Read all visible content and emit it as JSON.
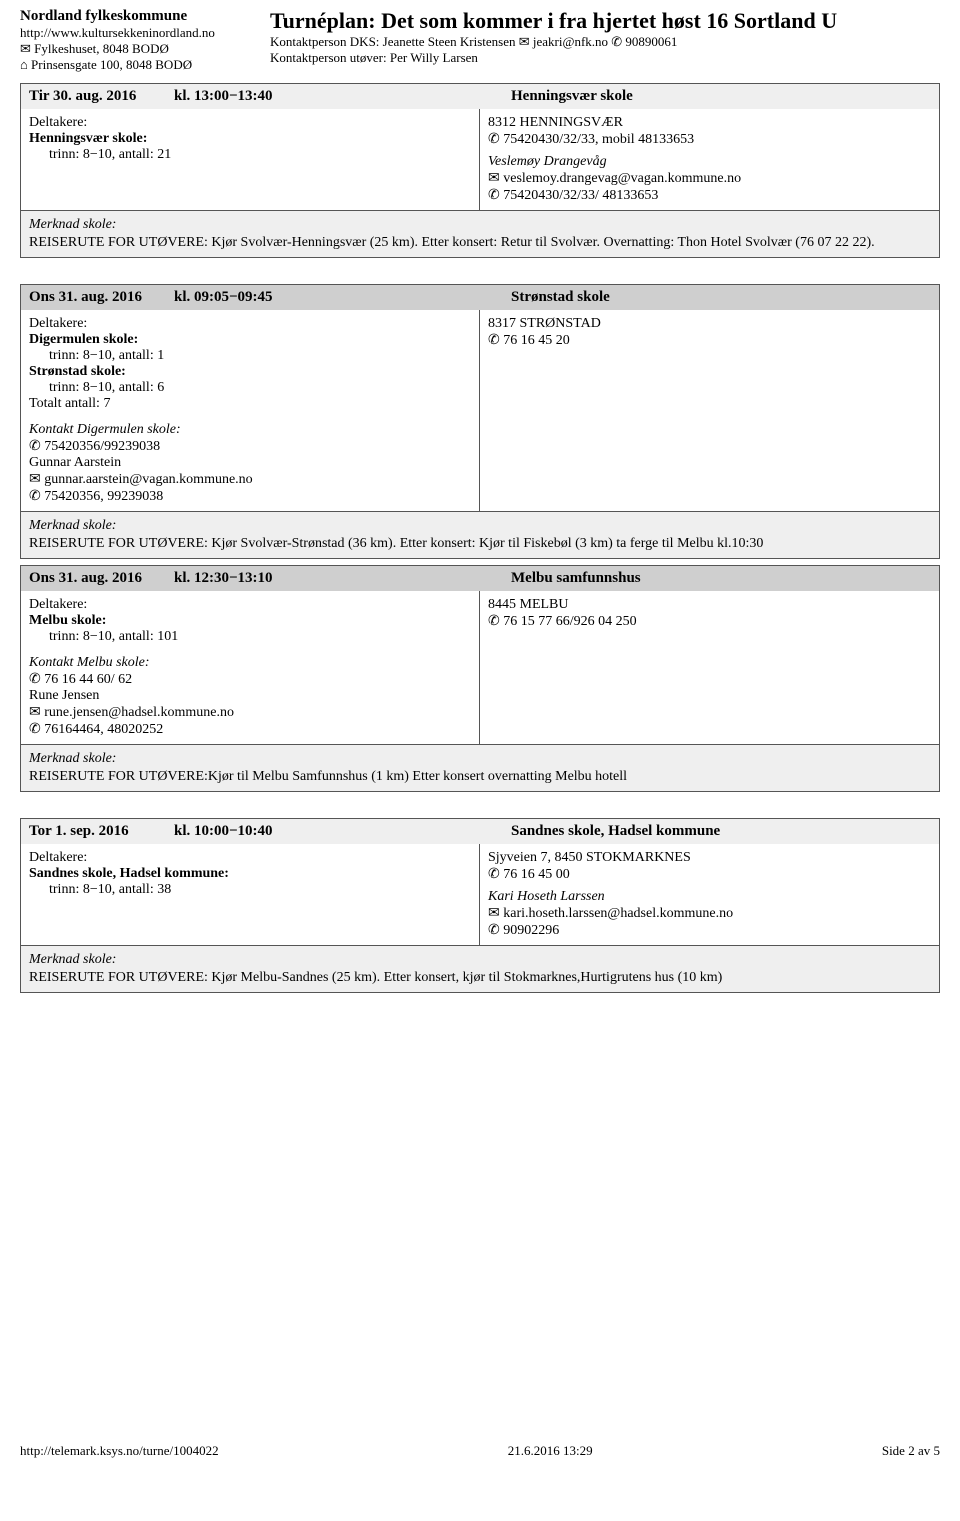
{
  "header": {
    "org_name": "Nordland fylkeskommune",
    "org_url": "http://www.kultursekkeninordland.no",
    "addr1": "✉ Fylkeshuset, 8048 BODØ",
    "addr2": "⌂ Prinsensgate 100, 8048 BODØ",
    "main_title": "Turnéplan: Det som kommer i fra hjertet høst 16 Sortland U",
    "contact1": "Kontaktperson DKS: Jeanette Steen Kristensen ✉ jeakri@nfk.no ✆ 90890061",
    "contact2": "Kontaktperson utøver: Per Willy Larsen"
  },
  "events": [
    {
      "header_style": "light",
      "date": "Tir 30. aug. 2016",
      "time_label": "kl. 13:00−13:40",
      "location": "Henningsvær skole",
      "participants_label": "Deltakere:",
      "schools": [
        {
          "name": "Henningsvær skole:",
          "detail": "trinn: 8−10, antall: 21"
        }
      ],
      "venue_addr": "8312 HENNINGSVÆR",
      "venue_phone": "✆ 75420430/32/33, mobil 48133653",
      "person_name": "Veslemøy Drangevåg",
      "person_email": "✉ veslemoy.drangevag@vagan.kommune.no",
      "person_phone": "✆ 75420430/32/33/ 48133653",
      "note_label": "Merknad skole:",
      "note_text": "REISERUTE FOR UTØVERE: Kjør Svolvær-Henningsvær (25 km). Etter konsert: Retur til Svolvær. Overnatting: Thon Hotel Svolvær (76 07 22 22)."
    },
    {
      "header_style": "dark",
      "date": "Ons 31. aug. 2016",
      "time_label": "kl. 09:05−09:45",
      "location": "Strønstad skole",
      "participants_label": "Deltakere:",
      "schools": [
        {
          "name": "Digermulen skole:",
          "detail": "trinn: 8−10, antall: 1"
        },
        {
          "name": "Strønstad skole:",
          "detail": "trinn: 8−10, antall: 6"
        }
      ],
      "total": "Totalt antall: 7",
      "contact_title": "Kontakt Digermulen skole:",
      "contact_phone": "✆ 75420356/99239038",
      "contact_name": "Gunnar Aarstein",
      "contact_email": "✉ gunnar.aarstein@vagan.kommune.no",
      "contact_phone2": "✆ 75420356, 99239038",
      "venue_addr": "8317 STRØNSTAD",
      "venue_phone": "✆ 76 16 45 20",
      "note_label": "Merknad skole:",
      "note_text": "REISERUTE FOR UTØVERE: Kjør Svolvær-Strønstad (36 km). Etter konsert: Kjør til Fiskebøl (3 km) ta ferge til Melbu kl.10:30"
    },
    {
      "header_style": "dark",
      "date": "Ons 31. aug. 2016",
      "time_label": "kl. 12:30−13:10",
      "location": "Melbu samfunnshus",
      "participants_label": "Deltakere:",
      "schools": [
        {
          "name": "Melbu skole:",
          "detail": "trinn: 8−10, antall: 101"
        }
      ],
      "contact_title": "Kontakt Melbu skole:",
      "contact_phone": "✆ 76 16 44 60/ 62",
      "contact_name": "Rune Jensen",
      "contact_email": "✉ rune.jensen@hadsel.kommune.no",
      "contact_phone2": "✆ 76164464, 48020252",
      "venue_addr": "8445 MELBU",
      "venue_phone": "✆ 76 15 77 66/926 04 250",
      "note_label": "Merknad skole:",
      "note_text": "REISERUTE FOR UTØVERE:Kjør til Melbu Samfunnshus (1 km) Etter konsert overnatting Melbu hotell"
    },
    {
      "header_style": "light",
      "date": "Tor 1. sep. 2016",
      "time_label": "kl. 10:00−10:40",
      "location": "Sandnes skole, Hadsel kommune",
      "participants_label": "Deltakere:",
      "schools": [
        {
          "name": "Sandnes skole, Hadsel kommune:",
          "detail": "trinn: 8−10, antall: 38"
        }
      ],
      "venue_addr": "Sjyveien 7, 8450 STOKMARKNES",
      "venue_phone": "✆ 76 16 45 00",
      "person_name": "Kari Hoseth Larssen",
      "person_email": "✉ kari.hoseth.larssen@hadsel.kommune.no",
      "person_phone": "✆ 90902296",
      "note_label": "Merknad skole:",
      "note_text": "REISERUTE FOR UTØVERE: Kjør Melbu-Sandnes (25 km).  Etter konsert, kjør til Stokmarknes,Hurtigrutens hus (10 km)"
    }
  ],
  "footer": {
    "url": "http://telemark.ksys.no/turne/1004022",
    "date": "21.6.2016 13:29",
    "page": "Side 2 av 5"
  }
}
